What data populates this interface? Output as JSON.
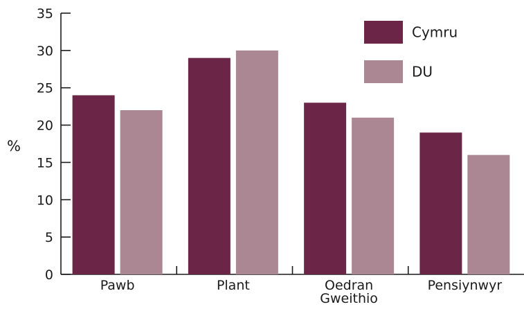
{
  "chart_data": {
    "type": "bar",
    "title": "",
    "xlabel": "",
    "ylabel": "%",
    "ylim": [
      0,
      35
    ],
    "yticks": [
      0,
      5,
      10,
      15,
      20,
      25,
      30,
      35
    ],
    "grid": false,
    "legend_position": "top-right",
    "categories": [
      [
        "Pawb"
      ],
      [
        "Plant"
      ],
      [
        "Oedran",
        "Gweithio"
      ],
      [
        "Pensiynwyr"
      ]
    ],
    "series": [
      {
        "name": "Cymru",
        "color": "#6b2647",
        "values": [
          24,
          29,
          23,
          19
        ]
      },
      {
        "name": "DU",
        "color": "#aa8792",
        "values": [
          22,
          30,
          21,
          16
        ]
      }
    ]
  }
}
